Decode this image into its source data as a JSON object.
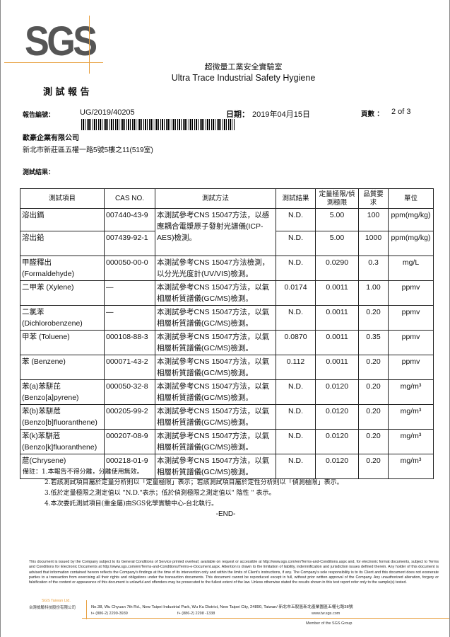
{
  "logo": "SGS",
  "lab_name_zh": "超微量工業安全實驗室",
  "lab_name_en": "Ultra Trace Industrial Safety Hygiene",
  "doc_title": "測 試 報 告",
  "report_no_label": "報告編號：",
  "report_no": "UG/2019/40205",
  "date_label": "日期：",
  "date": "2019年04月15日",
  "page_label": "頁數 ：",
  "page": "2 of 3",
  "client_name": "歐豪企業有限公司",
  "client_address": "新北市新莊區五權一路5號5樓之11(519室)",
  "results_label": "測試結果：",
  "table": {
    "headers": [
      "測試項目",
      "CAS NO.",
      "測試方法",
      "測試結果",
      "定量極限/偵測極限",
      "品質要求",
      "單位"
    ],
    "method_icp": "本測試參考CNS 15047方法，以感應耦合電漿原子發射光譜儀(ICP-AES)檢測。",
    "rows": [
      {
        "item": "溶出鎘",
        "cas": "007440-43-9",
        "result": "N.D.",
        "limit": "5.00",
        "req": "100",
        "unit": "ppm(mg/kg)"
      },
      {
        "item": "溶出鉛",
        "cas": "007439-92-1",
        "result": "N.D.",
        "limit": "5.00",
        "req": "1000",
        "unit": "ppm(mg/kg)"
      },
      {
        "item": "甲醛釋出 (Formaldehyde)",
        "cas": "000050-00-0",
        "method": "本測試參考CNS 15047方法檢測，以分光光度計(UV/VIS)檢測。",
        "result": "N.D.",
        "limit": "0.0290",
        "req": "0.3",
        "unit": "mg/L"
      },
      {
        "item": "二甲苯 (Xylene)",
        "cas": "—",
        "method": "本測試參考CNS 15047方法，以氣相層析質譜儀(GC/MS)檢測。",
        "result": "0.0174",
        "limit": "0.0011",
        "req": "1.00",
        "unit": "ppmv"
      },
      {
        "item": "二氯苯 (Dichlorobenzene)",
        "cas": "—",
        "method": "本測試參考CNS 15047方法，以氣相層析質譜儀(GC/MS)檢測。",
        "result": "N.D.",
        "limit": "0.0011",
        "req": "0.20",
        "unit": "ppmv"
      },
      {
        "item": "甲苯 (Toluene)",
        "cas": "000108-88-3",
        "method": "本測試參考CNS 15047方法，以氣相層析質譜儀(GC/MS)檢測。",
        "result": "0.0870",
        "limit": "0.0011",
        "req": "0.35",
        "unit": "ppmv"
      },
      {
        "item": "苯 (Benzene)",
        "cas": "000071-43-2",
        "method": "本測試參考CNS 15047方法，以氣相層析質譜儀(GC/MS)檢測。",
        "result": "0.112",
        "limit": "0.0011",
        "req": "0.20",
        "unit": "ppmv"
      },
      {
        "item": "苯(a)苯駢芘 (Benzo[a]pyrene)",
        "cas": "000050-32-8",
        "method": "本測試參考CNS 15047方法，以氣相層析質譜儀(GC/MS)檢測。",
        "result": "N.D.",
        "limit": "0.0120",
        "req": "0.20",
        "unit": "mg/m³"
      },
      {
        "item": "苯(b)苯駢苊 (Benzo[b]fluoranthene)",
        "cas": "000205-99-2",
        "method": "本測試參考CNS 15047方法，以氣相層析質譜儀(GC/MS)檢測。",
        "result": "N.D.",
        "limit": "0.0120",
        "req": "0.20",
        "unit": "mg/m³"
      },
      {
        "item": "苯(k)苯駢苊 (Benzo[k]fluoranthene)",
        "cas": "000207-08-9",
        "method": "本測試參考CNS 15047方法，以氣相層析質譜儀(GC/MS)檢測。",
        "result": "N.D.",
        "limit": "0.0120",
        "req": "0.20",
        "unit": "mg/m³"
      },
      {
        "item": "䓛(Chrysene)",
        "cas": "000218-01-9",
        "method": "本測試參考CNS 15047方法，以氣相層析質譜儀(GC/MS)檢測。",
        "result": "N.D.",
        "limit": "0.0120",
        "req": "0.20",
        "unit": "mg/m³"
      }
    ]
  },
  "notes": [
    "備註：1.本報告不得分離，分離使用無效。",
    "2.若該測試項目屬於定量分析則以「定量極限」表示；若該測試項目屬於定性分析則以「偵測極限」表示。",
    "3.低於定量極限之測定值以 \"N.D.\"表示；低於偵測極限之測定值以\" 陰性 \" 表示。",
    "4.本次委託測試項目(重金屬)由SGS化學實驗中心-台北執行。"
  ],
  "end": "-END-",
  "disclaimer": {
    "p1": "This document is issued by the Company subject to its General Conditions of Service printed overleaf, available on request or accessible at ",
    "link1": "http://www.sgs.com/en/Terms-and-Conditions.aspx",
    "p2": " and, for electronic format documents, subject to Terms and Conditions for Electronic Documents at ",
    "link2": "http://www.sgs.com/en/Terms-and-Conditions/Terms-e-Document.aspx.",
    "p3": " Attention is drawn to the limitation of liability, indemnification and jurisdiction issues defined therein. Any holder of this document is advised that information contained hereon reflects the Company's findings at the time of its intervention only and within the limits of Client's instructions, if any. The Company's sole responsibility is to its Client and this document does not exonerate parties to a transaction from exercising all their rights and obligations under the transaction documents. This document cannot be reproduced except in full, without prior written approval of the Company. Any unauthorized alteration, forgery or falsification of the content or appearance of this document is unlawful and offenders may be prosecuted to the fullest extent of the law. Unless otherwise stated the results shown in this test report refer only to the sample(s) tested."
  },
  "footer": {
    "company_en": "SGS Taiwan Ltd.",
    "company_zh": "台灣檢驗科技股份有限公司",
    "address": "No.38, Wu Chyuan 7th Rd., New Taipei Industrial Park, Wu Ku District, New Taipei City, 24890, Taiwan/ 新北市五股區新北產業園區五權七路38號",
    "tel": "t+ (886-2) 2299-3939",
    "fax": "f+ (886-2) 2298 -1338",
    "web": "www.tw.sgs.com",
    "member": "Member of the SGS Group"
  },
  "colors": {
    "accent": "#e8a040",
    "logo": "#555555"
  }
}
